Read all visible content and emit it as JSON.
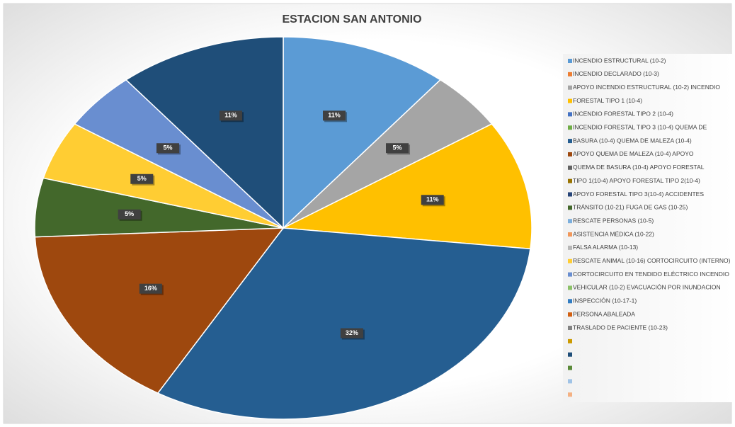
{
  "chart_data": {
    "type": "pie",
    "title": "ESTACION SAN ANTONIO",
    "categories": [
      "INCENDIO ESTRUCTURAL (10-2)",
      "INCENDIO DECLARADO (10-3)",
      "APOYO INCENDIO ESTRUCTURAL (10-2)    INCENDIO",
      "FORESTAL TIPO 1 (10-4)",
      "INCENDIO  FORESTAL  TIPO  2  (10-4)",
      "INCENDIO FORESTAL TIPO 3 (10-4)    QUEMA DE",
      "BASURA (10-4)      QUEMA DE MALEZA (10-4)",
      "APOYO QUEMA DE MALEZA (10-4)    APOYO",
      "QUEMA DE BASURA (10-4)    APOYO FORESTAL",
      "TIPO 1(10-4)    APOYO FORESTAL TIPO 2(10-4)",
      "APOYO FORESTAL TIPO 3(10-4)    ACCIDENTES",
      "TRÁNSITO (10-21)    FUGA DE GAS (10-25)",
      "RESCATE PERSONAS (10-5)",
      "ASISTENCIA MÉDICA (10-22)",
      "FALSA ALARMA (10-13)",
      "RESCATE ANIMAL (10-16)      CORTOCIRCUITO (INTERNO)",
      "CORTOCIRCUITO EN TENDIDO ELÉCTRICO   INCENDIO",
      "VEHICULAR (10-2)      EVACUACIÓN POR INUNDACION",
      "INSPECCIÓN (10-17-1)",
      "PERSONA ABALEADA",
      "TRASLADO DE PACIENTE (10-23)",
      null,
      null,
      null,
      null,
      null
    ],
    "values": [
      11,
      0,
      5,
      11,
      0,
      0,
      32,
      16,
      0,
      0,
      0,
      5,
      0,
      0,
      0,
      5,
      5,
      0,
      0,
      0,
      0,
      0,
      11,
      0,
      0,
      0
    ],
    "value_labels": [
      "11%",
      null,
      "5%",
      "11%",
      null,
      null,
      "32%",
      "16%",
      null,
      null,
      null,
      "5%",
      null,
      null,
      null,
      "5%",
      "5%",
      null,
      null,
      null,
      null,
      null,
      "11%",
      null,
      null,
      null
    ],
    "colors": [
      "#5b9bd5",
      "#ed7d31",
      "#a5a5a5",
      "#ffc000",
      "#4472c4",
      "#70ad47",
      "#255e91",
      "#9e480e",
      "#636363",
      "#997300",
      "#264478",
      "#43682b",
      "#7cafdd",
      "#f1975a",
      "#b7b7b7",
      "#ffcd33",
      "#698ed0",
      "#8cc168",
      "#327dc2",
      "#d26012",
      "#848484",
      "#cc9a00",
      "#1f4e79",
      "#5a8a39",
      "#a0c3e6",
      "#f4b183"
    ],
    "legend": "right"
  }
}
